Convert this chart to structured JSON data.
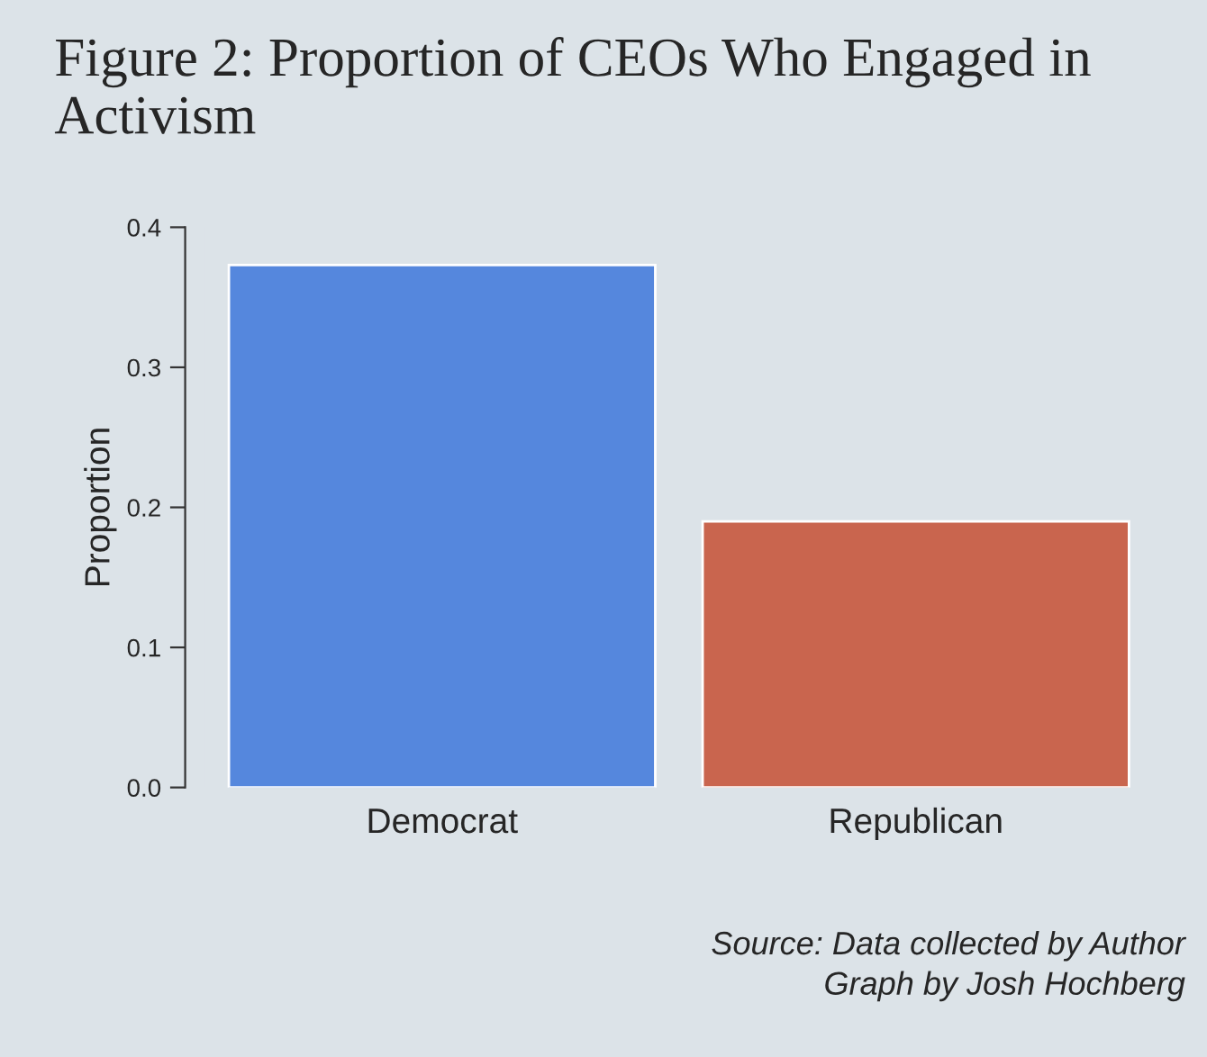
{
  "chart_data": {
    "type": "bar",
    "title": "Figure 2: Proportion of CEOs Who Engaged in Activism",
    "categories": [
      "Democrat",
      "Republican"
    ],
    "values": [
      0.373,
      0.19
    ],
    "colors": [
      "#5587dd",
      "#c9654e"
    ],
    "ylabel": "Proportion",
    "ylim": [
      0,
      0.4
    ],
    "yticks": [
      {
        "value": 0,
        "label": "0.0"
      },
      {
        "value": 0.1,
        "label": "0.1"
      },
      {
        "value": 0.2,
        "label": "0.2"
      },
      {
        "value": 0.3,
        "label": "0.3"
      },
      {
        "value": 0.4,
        "label": "0.4"
      }
    ],
    "grid": false,
    "annotations": [
      "Source: Data collected by Author",
      "Graph by Josh Hochberg"
    ]
  }
}
